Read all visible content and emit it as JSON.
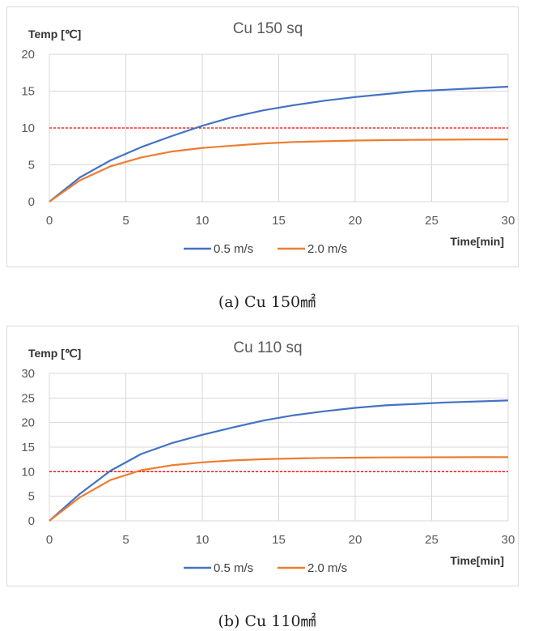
{
  "figures": [
    {
      "caption": "(a) Cu 150㎟",
      "chart_data": {
        "type": "line",
        "title": "Cu 150 sq",
        "ylabel": "Temp [℃]",
        "xlabel": "Time[min]",
        "xlim": [
          0,
          30
        ],
        "ylim": [
          0,
          20
        ],
        "xticks": [
          0,
          5,
          10,
          15,
          20,
          25,
          30
        ],
        "yticks": [
          0,
          5,
          10,
          15,
          20
        ],
        "grid": true,
        "legend_position": "bottom",
        "reference_line": {
          "y": 10,
          "color": "#ff0000",
          "style": "dashed"
        },
        "series": [
          {
            "name": "0.5 m/s",
            "color": "#4472c4",
            "x": [
              0,
              2,
              4,
              6,
              8,
              10,
              12,
              14,
              16,
              18,
              20,
              22,
              24,
              26,
              28,
              30
            ],
            "y": [
              0,
              3.3,
              5.6,
              7.4,
              8.9,
              10.3,
              11.5,
              12.4,
              13.1,
              13.7,
              14.2,
              14.6,
              15.0,
              15.2,
              15.4,
              15.6
            ]
          },
          {
            "name": "2.0 m/s",
            "color": "#ed7d31",
            "x": [
              0,
              2,
              4,
              6,
              8,
              10,
              12,
              14,
              16,
              18,
              20,
              22,
              24,
              26,
              28,
              30
            ],
            "y": [
              0,
              2.9,
              4.8,
              6.0,
              6.8,
              7.3,
              7.6,
              7.9,
              8.1,
              8.2,
              8.3,
              8.35,
              8.4,
              8.42,
              8.44,
              8.45
            ]
          }
        ]
      }
    },
    {
      "caption": "(b) Cu 110㎟",
      "chart_data": {
        "type": "line",
        "title": "Cu 110 sq",
        "ylabel": "Temp [℃]",
        "xlabel": "Time[min]",
        "xlim": [
          0,
          30
        ],
        "ylim": [
          0,
          30
        ],
        "xticks": [
          0,
          5,
          10,
          15,
          20,
          25,
          30
        ],
        "yticks": [
          0,
          5,
          10,
          15,
          20,
          25,
          30
        ],
        "grid": true,
        "legend_position": "bottom",
        "reference_line": {
          "y": 10,
          "color": "#ff0000",
          "style": "dashed"
        },
        "series": [
          {
            "name": "0.5 m/s",
            "color": "#4472c4",
            "x": [
              0,
              2,
              4,
              6,
              8,
              10,
              12,
              14,
              16,
              18,
              20,
              22,
              24,
              26,
              28,
              30
            ],
            "y": [
              0,
              5.5,
              10.2,
              13.6,
              15.8,
              17.5,
              19.0,
              20.4,
              21.5,
              22.3,
              23.0,
              23.5,
              23.8,
              24.1,
              24.3,
              24.5
            ]
          },
          {
            "name": "2.0 m/s",
            "color": "#ed7d31",
            "x": [
              0,
              2,
              4,
              6,
              8,
              10,
              12,
              14,
              16,
              18,
              20,
              22,
              24,
              26,
              28,
              30
            ],
            "y": [
              0,
              4.8,
              8.3,
              10.3,
              11.3,
              11.9,
              12.3,
              12.55,
              12.7,
              12.8,
              12.85,
              12.9,
              12.92,
              12.94,
              12.95,
              12.95
            ]
          }
        ]
      }
    }
  ]
}
